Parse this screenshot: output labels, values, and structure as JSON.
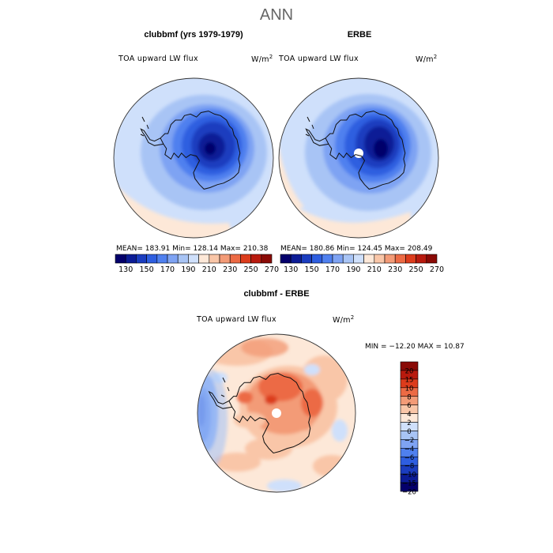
{
  "title": "ANN",
  "panels": [
    {
      "title": "clubbmf (yrs 1979-1979)",
      "variable": "TOA upward LW flux",
      "units_base": "W/m",
      "units_exp": "2",
      "stats": "MEAN= 183.91   Min= 128.14   Max= 210.38"
    },
    {
      "title": "ERBE",
      "variable": "TOA upward LW flux",
      "units_base": "W/m",
      "units_exp": "2",
      "stats": "MEAN= 180.86   Min= 124.45   Max= 208.49"
    },
    {
      "title": "clubbmf - ERBE",
      "variable": "TOA upward LW flux",
      "units_base": "W/m",
      "units_exp": "2",
      "stats": "MIN = −12.20 MAX =  10.87"
    }
  ],
  "chart_data": [
    {
      "type": "heatmap",
      "projection": "south-polar-stereographic",
      "title": "clubbmf (yrs 1979-1979)",
      "variable": "TOA upward LW flux",
      "units": "W/m2",
      "mean": 183.91,
      "min": 128.14,
      "max": 210.38,
      "contour_levels": [
        130,
        140,
        150,
        160,
        170,
        180,
        190,
        200,
        210,
        220,
        230,
        240,
        250,
        260,
        270
      ]
    },
    {
      "type": "heatmap",
      "projection": "south-polar-stereographic",
      "title": "ERBE",
      "variable": "TOA upward LW flux",
      "units": "W/m2",
      "mean": 180.86,
      "min": 124.45,
      "max": 208.49,
      "contour_levels": [
        130,
        140,
        150,
        160,
        170,
        180,
        190,
        200,
        210,
        220,
        230,
        240,
        250,
        260,
        270
      ]
    },
    {
      "type": "heatmap",
      "projection": "south-polar-stereographic",
      "title": "clubbmf - ERBE",
      "variable": "TOA upward LW flux",
      "units": "W/m2",
      "min": -12.2,
      "max": 10.87,
      "contour_levels": [
        -20,
        -15,
        -10,
        -8,
        -6,
        -4,
        -2,
        0,
        2,
        4,
        6,
        8,
        10,
        15,
        20
      ]
    }
  ],
  "colorbar_abs": {
    "colors": [
      "#04006b",
      "#0c1c96",
      "#1b3dbf",
      "#2e5ee0",
      "#4f80ef",
      "#7ea3f3",
      "#a8c4f5",
      "#cfe0fb",
      "#fde8d8",
      "#f9c6a8",
      "#f39b77",
      "#ec6a44",
      "#dc3c1c",
      "#b81a0e",
      "#8a0a06"
    ],
    "labels": [
      "130",
      "150",
      "170",
      "190",
      "210",
      "230",
      "250",
      "270"
    ]
  },
  "colorbar_diff": {
    "colors": [
      "#04006b",
      "#0c1c96",
      "#1b3dbf",
      "#2e5ee0",
      "#4f80ef",
      "#7ea3f3",
      "#a8c4f5",
      "#cfe0fb",
      "#fde8d8",
      "#f9c6a8",
      "#f39b77",
      "#ec6a44",
      "#dc3c1c",
      "#b81a0e",
      "#8a0a06"
    ],
    "labels": [
      "−20",
      "−15",
      "−10",
      "−8",
      "−6",
      "−4",
      "−2",
      "0",
      "2",
      "4",
      "6",
      "8",
      "10",
      "15",
      "20"
    ]
  }
}
